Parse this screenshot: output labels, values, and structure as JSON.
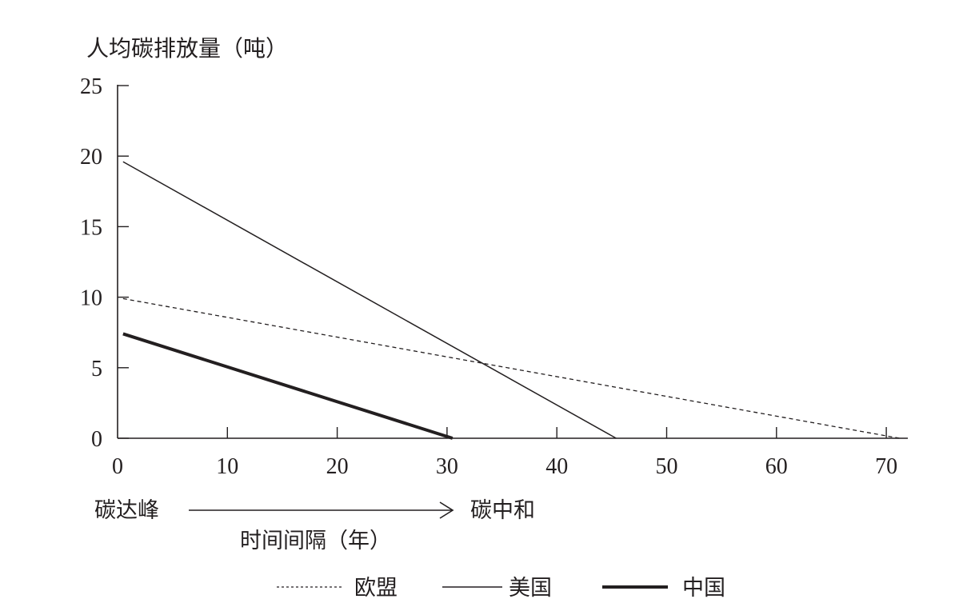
{
  "chart_data": {
    "type": "line",
    "title": "",
    "ylabel": "人均碳排放量（吨）",
    "xlabel": "时间间隔（年）",
    "x_annotation": {
      "start": "碳达峰",
      "end": "碳中和"
    },
    "xlim": [
      0,
      72
    ],
    "ylim": [
      0,
      25
    ],
    "xticks": [
      0,
      10,
      20,
      30,
      40,
      50,
      60,
      70
    ],
    "yticks": [
      0,
      5,
      10,
      15,
      20,
      25
    ],
    "grid": false,
    "legend_position": "bottom",
    "series": [
      {
        "name": "欧盟",
        "style": "dashed",
        "stroke_width": 1.3,
        "points": [
          [
            0.5,
            9.9
          ],
          [
            71.2,
            0
          ]
        ]
      },
      {
        "name": "美国",
        "style": "solid",
        "stroke_width": 1.5,
        "points": [
          [
            0.5,
            19.6
          ],
          [
            45.4,
            0
          ]
        ]
      },
      {
        "name": "中国",
        "style": "solid",
        "stroke_width": 4,
        "points": [
          [
            0.5,
            7.4
          ],
          [
            30.5,
            0
          ]
        ]
      }
    ]
  },
  "legend": [
    {
      "label": "欧盟"
    },
    {
      "label": "美国"
    },
    {
      "label": "中国"
    }
  ],
  "colors": {
    "ink": "#231f20",
    "background": "#ffffff"
  }
}
